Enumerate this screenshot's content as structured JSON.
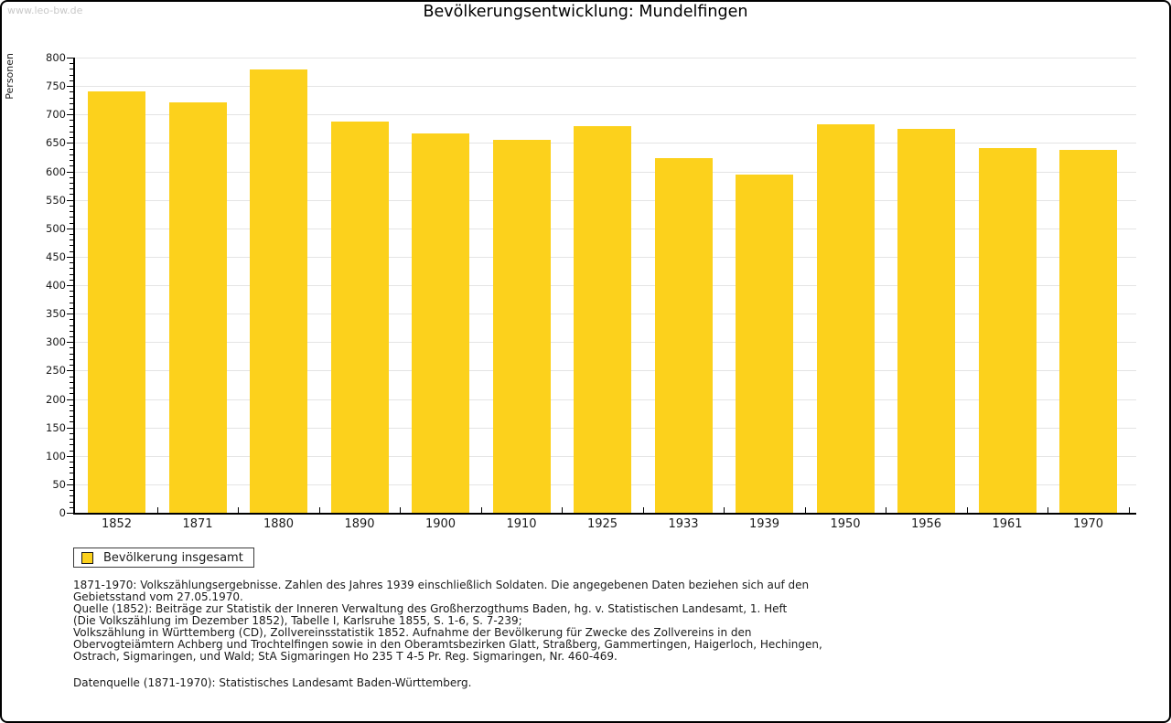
{
  "watermark": "www.leo-bw.de",
  "chart_data": {
    "type": "bar",
    "title": "Bevölkerungsentwicklung: Mundelfingen",
    "xlabel": "",
    "ylabel": "Personen",
    "categories": [
      "1852",
      "1871",
      "1880",
      "1890",
      "1900",
      "1910",
      "1925",
      "1933",
      "1939",
      "1950",
      "1956",
      "1961",
      "1970"
    ],
    "series": [
      {
        "name": "Bevölkerung insgesamt",
        "values": [
          740,
          721,
          779,
          688,
          666,
          655,
          680,
          624,
          595,
          682,
          674,
          641,
          638
        ]
      }
    ],
    "ylim": [
      0,
      800
    ],
    "yticks": [
      0,
      50,
      100,
      150,
      200,
      250,
      300,
      350,
      400,
      450,
      500,
      550,
      600,
      650,
      700,
      750,
      800
    ],
    "ytick_minor_step": 10,
    "grid": "horizontal",
    "legend_position": "bottom-left",
    "bar_color": "#FCD11C"
  },
  "footnotes": {
    "lines": [
      "1871-1970: Volkszählungsergebnisse. Zahlen des Jahres 1939 einschließlich Soldaten. Die angegebenen Daten beziehen sich auf den",
      "Gebietsstand vom 27.05.1970.",
      "Quelle (1852): Beiträge zur Statistik der Inneren Verwaltung des Großherzogthums Baden, hg. v. Statistischen Landesamt, 1. Heft",
      "(Die Volkszählung im Dezember 1852), Tabelle I, Karlsruhe 1855, S. 1-6, S. 7-239;",
      "Volkszählung in Württemberg (CD), Zollvereinsstatistik 1852. Aufnahme der Bevölkerung für Zwecke des Zollvereins in den",
      "Obervogteiämtern Achberg und Trochtelfingen sowie in den Oberamtsbezirken Glatt, Straßberg, Gammertingen, Haigerloch, Hechingen,",
      "Ostrach, Sigmaringen, und Wald; StA Sigmaringen Ho 235 T 4-5 Pr. Reg. Sigmaringen, Nr. 460-469."
    ],
    "datasource": "Datenquelle (1871-1970): Statistisches Landesamt Baden-Württemberg."
  }
}
